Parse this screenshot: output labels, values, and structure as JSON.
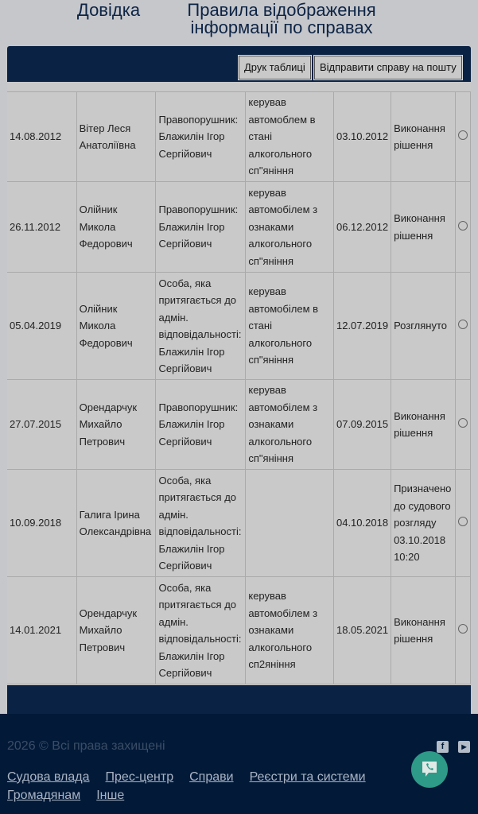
{
  "header": {
    "help": "Довідка",
    "rules": "Правила відображення інформації по справах"
  },
  "toolbar": {
    "print": "Друк таблиці",
    "email": "Відправити справу на пошту"
  },
  "rows": [
    {
      "date": "14.08.2012",
      "judge": "Вітер Леся Анатоліївна",
      "party": "Правопорушник: Блажилін Ігор Сергійович",
      "desc": "керував автомоблем в стані алкогольного сп\"яніння",
      "date2": "03.10.2012",
      "status": "Виконання рішення"
    },
    {
      "date": "26.11.2012",
      "judge": "Олійник Микола Федорович",
      "party": "Правопорушник: Блажилін Ігор Сергійович",
      "desc": "керував автомобілем з ознаками алкогольного сп\"яніння",
      "date2": "06.12.2012",
      "status": "Виконання рішення"
    },
    {
      "date": "05.04.2019",
      "judge": "Олійник Микола Федорович",
      "party": "Особа, яка притягається до адмін. відповідальності: Блажилін Ігор Сергійович",
      "desc": "керував автомобілем в стані алкогольного сп\"яніння",
      "date2": "12.07.2019",
      "status": "Розглянуто"
    },
    {
      "date": "27.07.2015",
      "judge": "Орендарчук Михайло Петрович",
      "party": "Правопорушник: Блажилін Ігор Сергійович",
      "desc": "керував автомобілем з ознаками алкогольного сп\"яніння",
      "date2": "07.09.2015",
      "status": "Виконання рішення"
    },
    {
      "date": "10.09.2018",
      "judge": "Галига Ірина Олександрівна",
      "party": "Особа, яка притягається до адмін. відповідальності: Блажилін Ігор Сергійович",
      "desc": "",
      "date2": "04.10.2018",
      "status": "Призначено до судового розгляду 03.10.2018 10:20"
    },
    {
      "date": "14.01.2021",
      "judge": "Орендарчук Михайло Петрович",
      "party": "Особа, яка притягається до адмін. відповідальності: Блажилін Ігор Сергійович",
      "desc": "керував автомобілем з ознаками алкогольного сп2яніння",
      "date2": "18.05.2021",
      "status": "Виконання рішення"
    }
  ],
  "footer": {
    "copyright": "2026 © Всі права захищені",
    "links": [
      "Судова влада",
      "Прес-центр",
      "Справи",
      "Реєстри та системи",
      "Громадянам",
      "Інше"
    ],
    "icons": [
      "facebook-icon",
      "youtube-icon",
      "phone-chat-icon"
    ]
  },
  "colors": {
    "navy": "#0a2244",
    "footer": "#021a38",
    "call": "#2e9a88"
  }
}
